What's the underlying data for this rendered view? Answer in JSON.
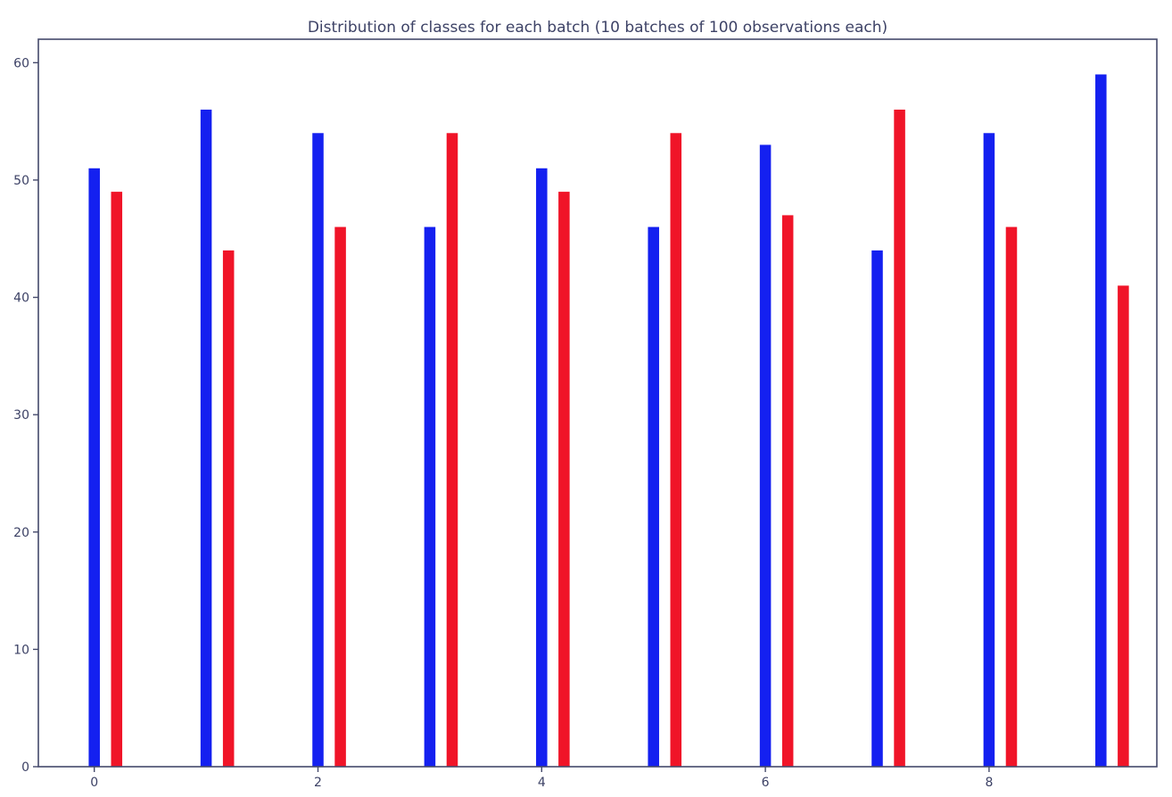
{
  "chart_data": {
    "type": "bar",
    "title": "Distribution of classes for each batch (10 batches of 100 observations each)",
    "xlabel": "",
    "ylabel": "",
    "x": [
      0,
      1,
      2,
      3,
      4,
      5,
      6,
      7,
      8,
      9
    ],
    "xticks": [
      0,
      2,
      4,
      6,
      8
    ],
    "yticks": [
      0,
      10,
      20,
      30,
      40,
      50,
      60
    ],
    "xlim": [
      -0.5,
      9.5
    ],
    "ylim": [
      0,
      62
    ],
    "bar_width": 0.1,
    "grid": false,
    "series": [
      {
        "color": "#1420f0",
        "x_offset": 0,
        "values": [
          51,
          56,
          54,
          46,
          51,
          46,
          53,
          44,
          54,
          59
        ]
      },
      {
        "color": "#f01428",
        "x_offset": 0.2,
        "values": [
          49,
          44,
          46,
          54,
          49,
          54,
          47,
          56,
          46,
          41
        ]
      }
    ]
  }
}
